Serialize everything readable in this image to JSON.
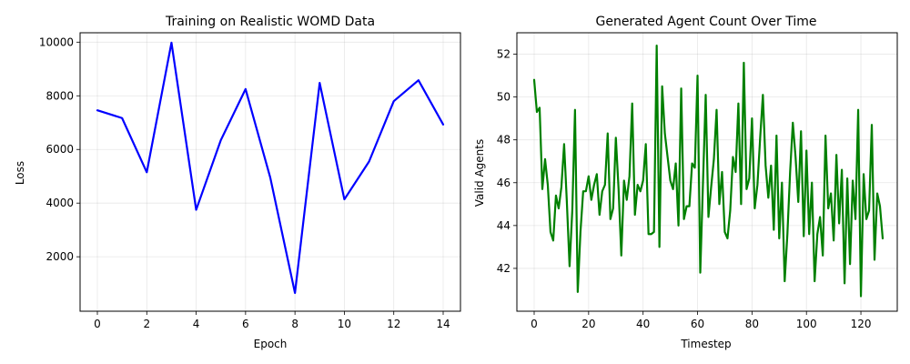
{
  "chart_data": [
    {
      "type": "line",
      "title": "Training on Realistic WOMD Data",
      "xlabel": "Epoch",
      "ylabel": "Loss",
      "xlim": [
        -0.7,
        14.7
      ],
      "ylim": [
        -30,
        10350
      ],
      "xticks": [
        0,
        2,
        4,
        6,
        8,
        10,
        12,
        14
      ],
      "yticks": [
        2000,
        4000,
        6000,
        8000,
        10000
      ],
      "grid": true,
      "color": "#0000ff",
      "series": [
        {
          "x": [
            0,
            1,
            2,
            3,
            4,
            5,
            6,
            7,
            8,
            9,
            10,
            11,
            12,
            13,
            14
          ],
          "values": [
            7460,
            7170,
            5150,
            9980,
            3750,
            6350,
            8250,
            4950,
            650,
            8480,
            4140,
            5550,
            7800,
            8580,
            6930
          ]
        }
      ]
    },
    {
      "type": "line",
      "title": "Generated Agent Count Over Time",
      "xlabel": "Timestep",
      "ylabel": "Valid Agents",
      "xlim": [
        -6.35,
        133.35
      ],
      "ylim": [
        40.0,
        53.0
      ],
      "xticks": [
        0,
        20,
        40,
        60,
        80,
        100,
        120
      ],
      "yticks": [
        42,
        44,
        46,
        48,
        50,
        52
      ],
      "grid": true,
      "color": "#008000",
      "series": [
        {
          "values": [
            50.8,
            49.3,
            49.5,
            45.7,
            47.1,
            45.9,
            43.7,
            43.3,
            45.4,
            44.8,
            45.8,
            47.8,
            45.1,
            42.1,
            44.7,
            49.4,
            40.9,
            43.7,
            45.6,
            45.6,
            46.3,
            45.2,
            45.9,
            46.4,
            44.5,
            45.6,
            45.9,
            48.3,
            44.3,
            44.8,
            48.1,
            45.7,
            42.6,
            46.1,
            45.2,
            46.3,
            49.7,
            44.5,
            45.9,
            45.6,
            46.1,
            47.8,
            43.6,
            43.6,
            43.7,
            52.4,
            43.0,
            50.5,
            48.3,
            47.2,
            46.1,
            45.7,
            46.9,
            44.0,
            50.4,
            44.3,
            44.9,
            44.9,
            46.9,
            46.7,
            51.0,
            41.8,
            46.0,
            50.1,
            44.4,
            45.8,
            47.1,
            49.4,
            45.0,
            46.5,
            43.7,
            43.4,
            44.7,
            47.2,
            46.5,
            49.7,
            45.0,
            51.6,
            45.7,
            46.2,
            49.0,
            44.8,
            45.9,
            48.1,
            50.1,
            46.8,
            45.3,
            46.8,
            43.8,
            48.2,
            43.4,
            46.0,
            41.4,
            43.6,
            46.5,
            48.8,
            47.2,
            45.1,
            48.4,
            43.5,
            47.5,
            43.6,
            46.0,
            41.4,
            43.6,
            44.4,
            42.6,
            48.2,
            44.8,
            45.5,
            43.3,
            47.3,
            44.1,
            46.6,
            41.3,
            46.2,
            42.2,
            46.1,
            44.3,
            49.4,
            40.7,
            46.4,
            44.3,
            44.7,
            48.7,
            42.4,
            45.5,
            44.9,
            43.4
          ]
        }
      ]
    }
  ]
}
